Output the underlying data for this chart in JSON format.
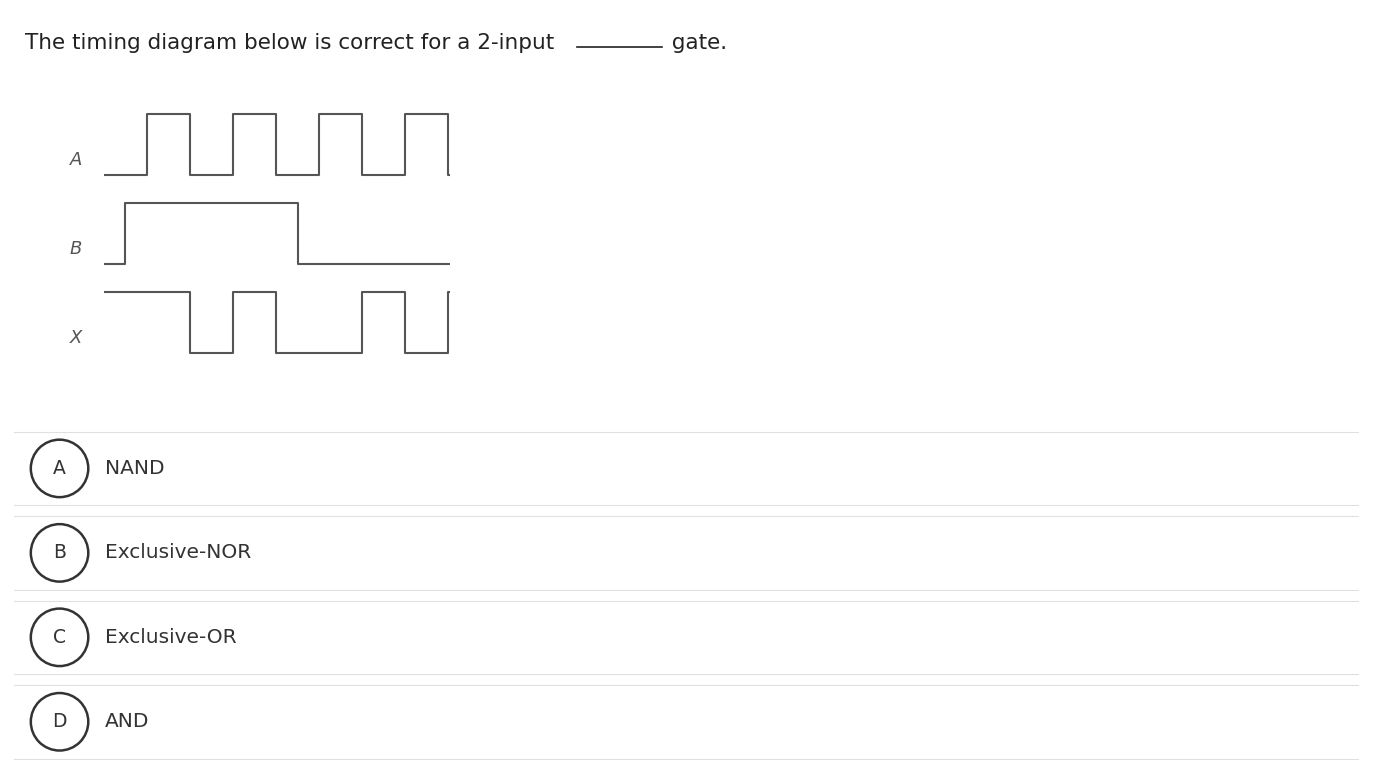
{
  "bg_color": "#ffffff",
  "waveform_color": "#555555",
  "label_color": "#555555",
  "label_fontsize": 13,
  "title_text1": "The timing diagram below is correct for a 2-input ",
  "title_text2": " gate.",
  "title_fontsize": 15.5,
  "title_color": "#222222",
  "A_times": [
    0,
    1,
    2,
    3,
    4,
    5,
    6,
    7,
    8
  ],
  "A_vals": [
    0,
    1,
    0,
    1,
    0,
    1,
    0,
    1,
    0
  ],
  "B_times": [
    0,
    0.5,
    4.5,
    8
  ],
  "B_vals": [
    0,
    1,
    0,
    0
  ],
  "X_times": [
    0,
    1,
    2,
    3,
    4,
    5,
    6,
    7,
    8
  ],
  "X_vals": [
    1,
    1,
    0,
    1,
    0,
    0,
    1,
    0,
    1
  ],
  "options": [
    {
      "label": "A",
      "text": "NAND"
    },
    {
      "label": "B",
      "text": "Exclusive-NOR"
    },
    {
      "label": "C",
      "text": "Exclusive-OR"
    },
    {
      "label": "D",
      "text": "AND"
    }
  ],
  "option_bg": "#f5f5f5",
  "option_border": "#e0e0e0",
  "option_text_color": "#333333",
  "option_fontsize": 14.5,
  "circle_fontsize": 13.5
}
